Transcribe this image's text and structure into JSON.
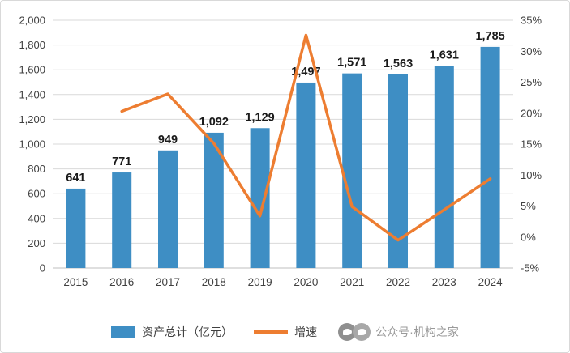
{
  "chart_data": {
    "type": "bar",
    "combo": "bar+line",
    "title": "",
    "categories": [
      "2015",
      "2016",
      "2017",
      "2018",
      "2019",
      "2020",
      "2021",
      "2022",
      "2023",
      "2024"
    ],
    "series": [
      {
        "name": "资产总计（亿元）",
        "type": "bar",
        "axis": "left",
        "color": "#3e8ec4",
        "values": [
          641,
          771,
          949,
          1092,
          1129,
          1497,
          1571,
          1563,
          1631,
          1785
        ],
        "labels": [
          "641",
          "771",
          "949",
          "1,092",
          "1,129",
          "1,497",
          "1,571",
          "1,563",
          "1,631",
          "1,785"
        ]
      },
      {
        "name": "增速",
        "type": "line",
        "axis": "right",
        "color": "#ed7d31",
        "values": [
          null,
          20.3,
          23.1,
          15.1,
          3.4,
          32.6,
          4.9,
          -0.5,
          4.4,
          9.4
        ]
      }
    ],
    "left_axis": {
      "min": 0,
      "max": 2000,
      "step": 200,
      "tick_labels": [
        "0",
        "200",
        "400",
        "600",
        "800",
        "1,000",
        "1,200",
        "1,400",
        "1,600",
        "1,800",
        "2,000"
      ]
    },
    "right_axis": {
      "min": -5,
      "max": 35,
      "step": 5,
      "suffix": "%",
      "tick_labels": [
        "-5%",
        "0%",
        "5%",
        "10%",
        "15%",
        "20%",
        "25%",
        "30%",
        "35%"
      ]
    },
    "grid": true,
    "legend_position": "bottom"
  },
  "colors": {
    "grid": "#d9d9d9",
    "axis": "#bfbfbf",
    "tick_text": "#404040",
    "bar_label": "#1a1a1a"
  },
  "watermark": {
    "text": "公众号·机构之家"
  }
}
